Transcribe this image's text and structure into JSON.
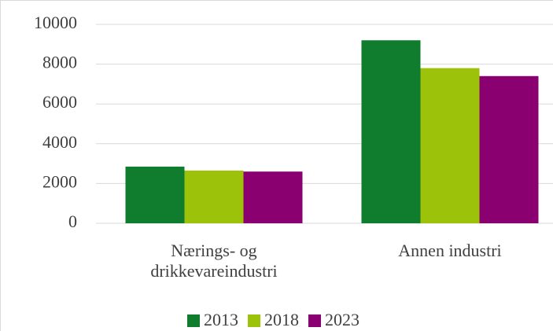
{
  "chart_data": {
    "type": "bar",
    "categories": [
      "Nærings- og drikkevareindustri",
      "Annen industri"
    ],
    "series": [
      {
        "name": "2013",
        "color": "#107c2e",
        "values": [
          2850,
          9200
        ]
      },
      {
        "name": "2018",
        "color": "#9dc20a",
        "values": [
          2650,
          7800
        ]
      },
      {
        "name": "2023",
        "color": "#8b0070",
        "values": [
          2600,
          7400
        ]
      }
    ],
    "ylim": [
      0,
      10000
    ],
    "yticks": [
      0,
      2000,
      4000,
      6000,
      8000,
      10000
    ],
    "grid": true,
    "legend": "bottom"
  }
}
